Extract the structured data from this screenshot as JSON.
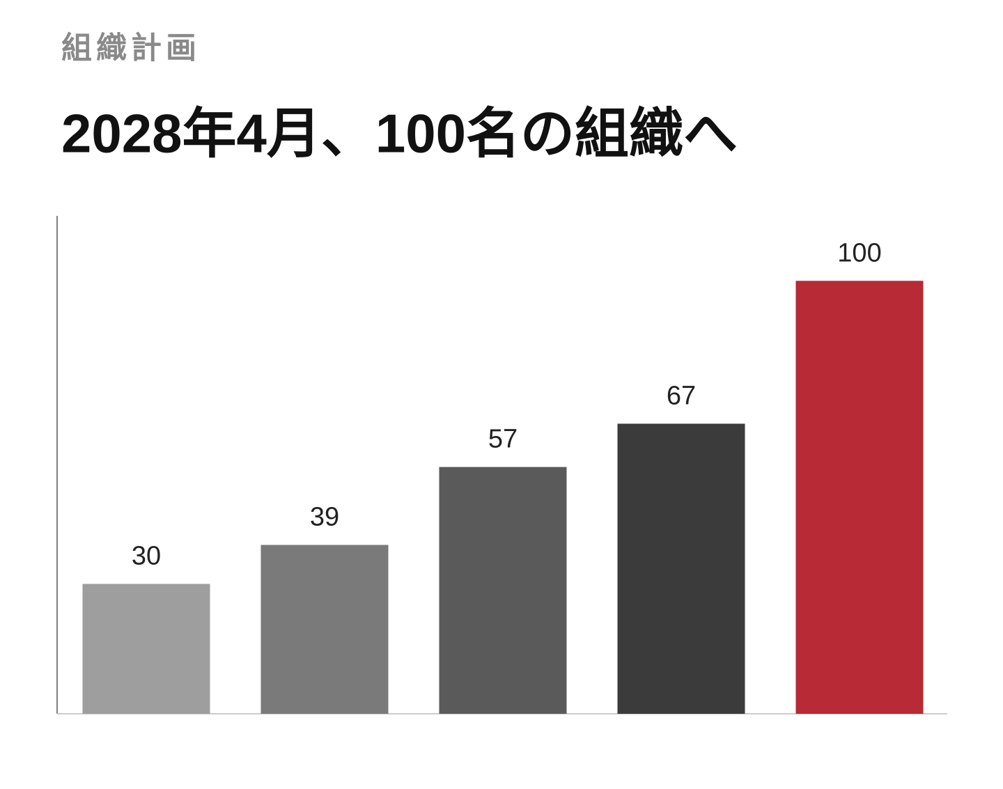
{
  "subtitle": "組織計画",
  "chart_data": {
    "type": "bar",
    "title": "2028年4月、100名の組織へ",
    "categories": [
      null,
      null,
      null,
      null,
      null
    ],
    "values": [
      30,
      39,
      57,
      67,
      100
    ],
    "colors": [
      "#9e9e9e",
      "#7a7a7a",
      "#5a5a5a",
      "#3b3b3b",
      "#b82a35"
    ],
    "ylim": [
      0,
      115
    ]
  }
}
